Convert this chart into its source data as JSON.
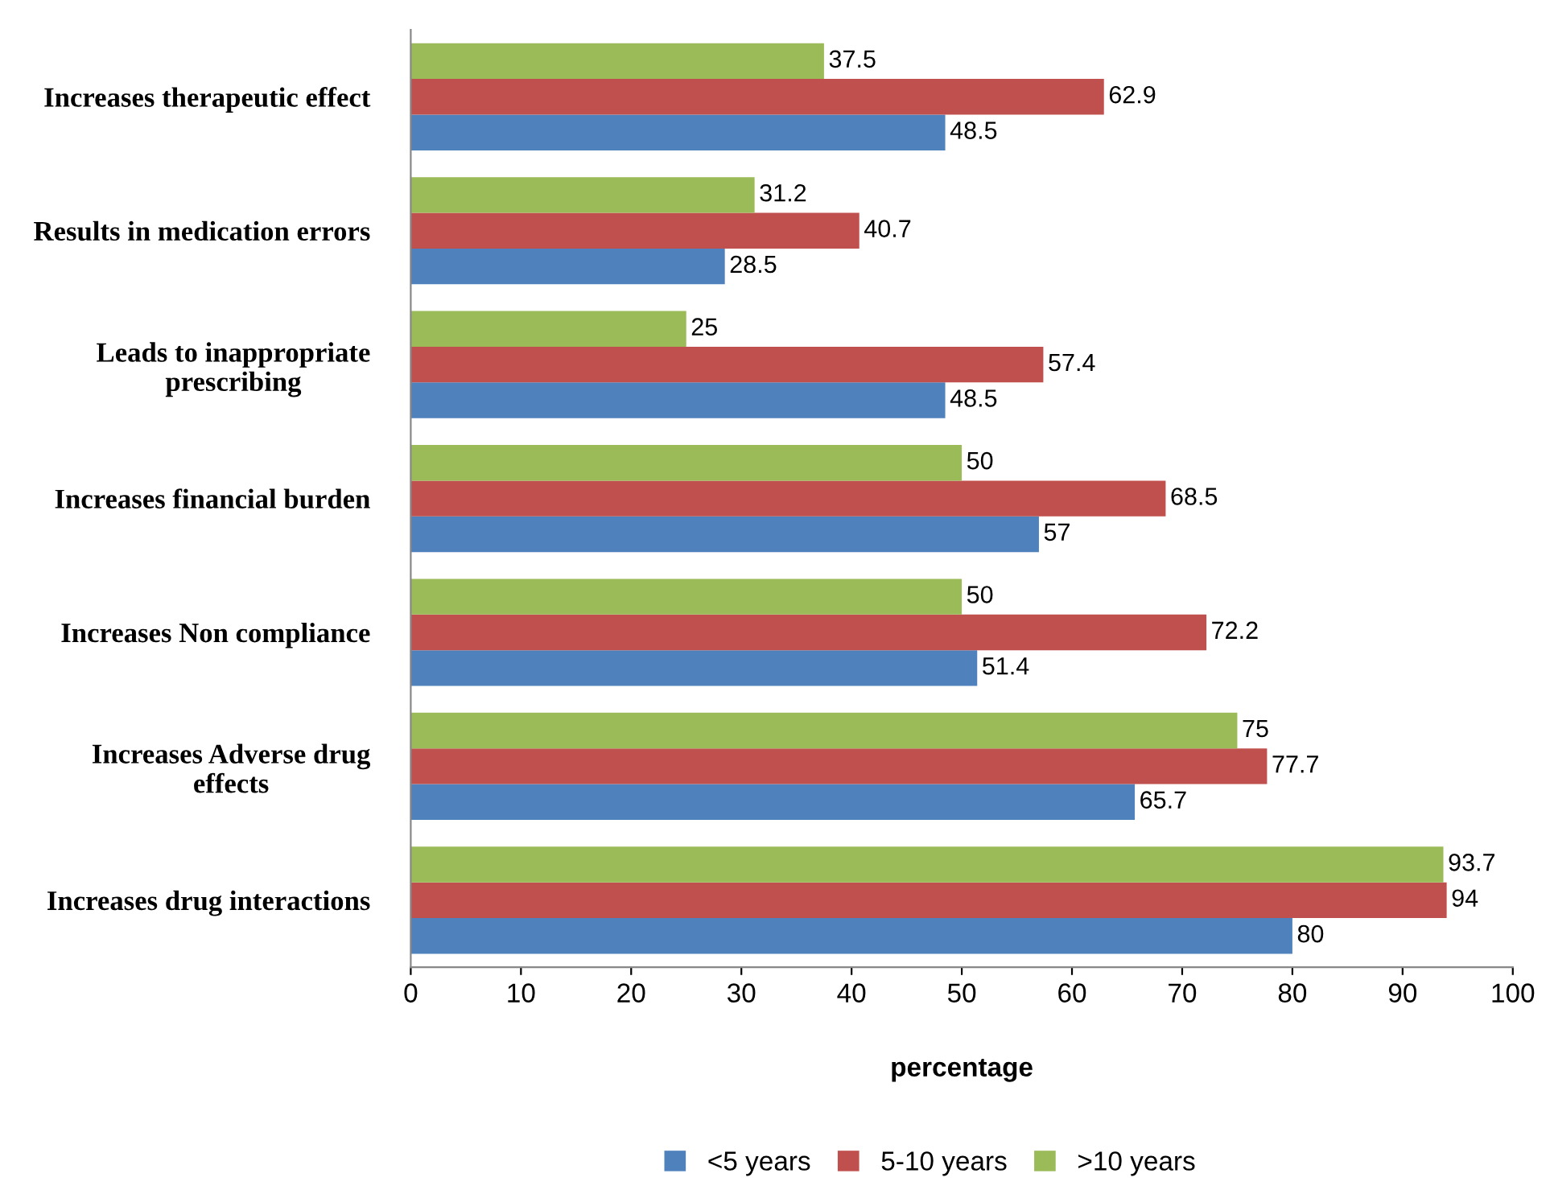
{
  "chart_data": {
    "type": "bar",
    "orientation": "horizontal",
    "xlabel": "percentage",
    "categories": [
      "Increases therapeutic effect",
      "Results in medication errors",
      "Leads to inappropriate\nprescribing",
      "Increases financial burden",
      "Increases Non compliance",
      "Increases Adverse drug\neffects",
      "Increases drug interactions"
    ],
    "series": [
      {
        "name": "<5 years",
        "color": "#4f81bd",
        "values": [
          48.5,
          28.5,
          48.5,
          57,
          51.4,
          65.7,
          80
        ]
      },
      {
        "name": "5-10 years",
        "color": "#c0504d",
        "values": [
          62.9,
          40.7,
          57.4,
          68.5,
          72.2,
          77.7,
          94
        ]
      },
      {
        "name": ">10 years",
        "color": "#9bbb59",
        "values": [
          37.5,
          31.2,
          25,
          50,
          50,
          75,
          93.7
        ]
      }
    ],
    "xlim": [
      0,
      100
    ],
    "xticks": [
      0,
      10,
      20,
      30,
      40,
      50,
      60,
      70,
      80,
      90,
      100
    ],
    "data_labels": true,
    "legend": "bottom",
    "grid": false
  }
}
